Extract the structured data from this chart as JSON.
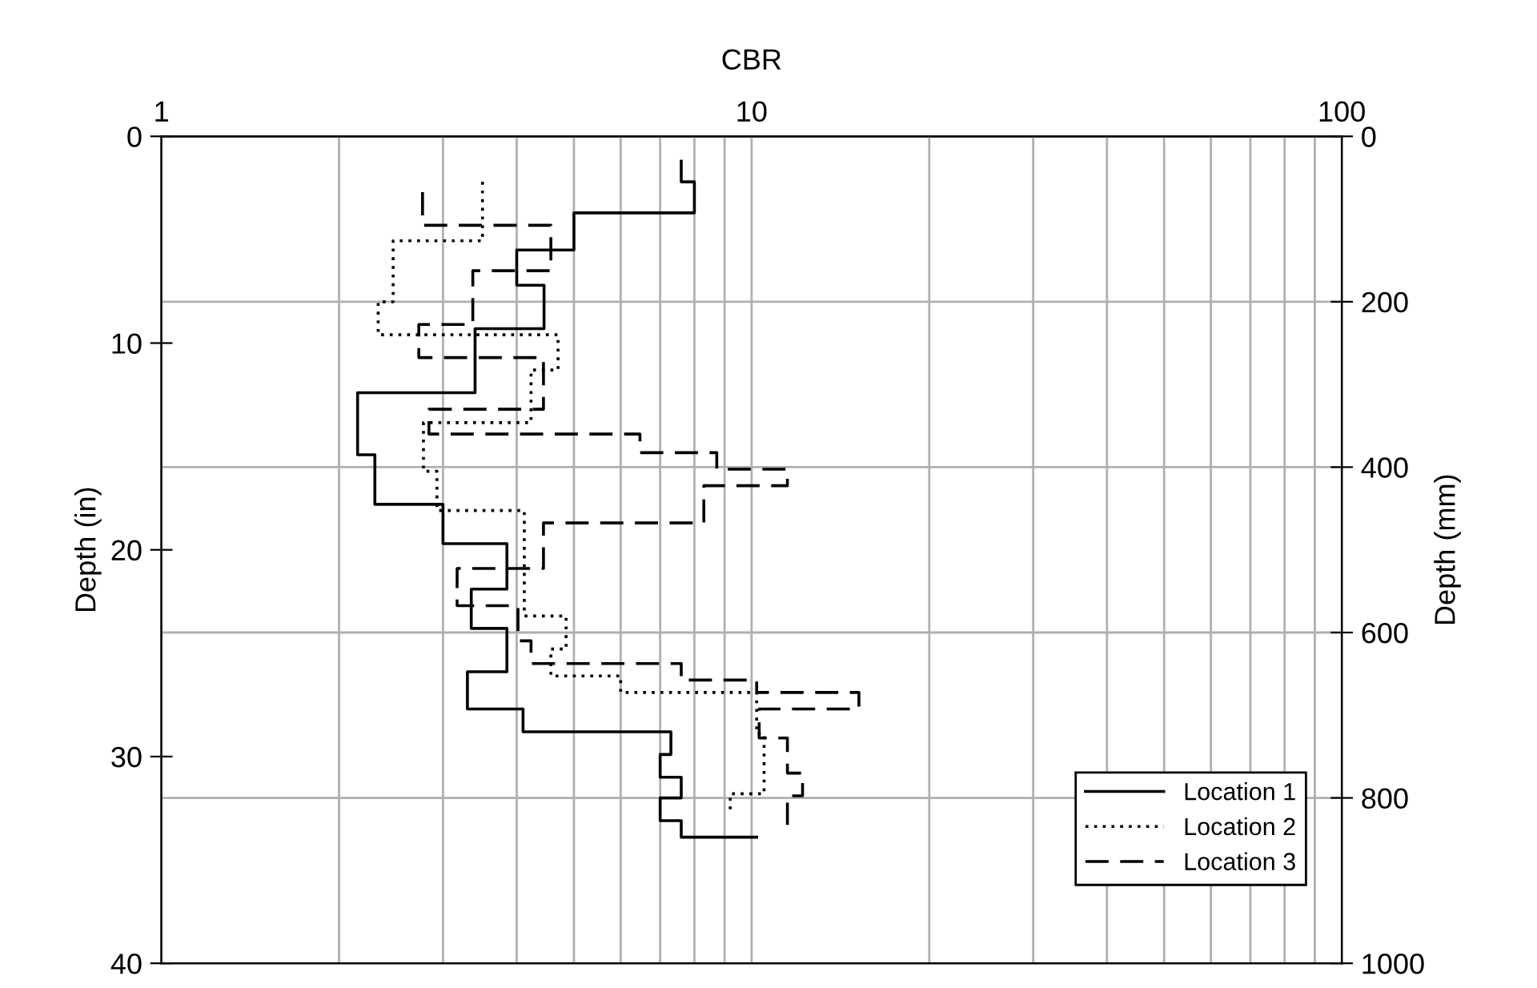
{
  "chart_data": {
    "type": "line",
    "xlabel": "CBR",
    "ylabel": "Depth (in)",
    "y2label": "Depth (mm)",
    "log": "x",
    "xlim": [
      1,
      100
    ],
    "xticks": [
      1,
      {
        "value": 2,
        "label": null
      },
      {
        "value": 3,
        "label": null
      },
      {
        "value": 4,
        "label": null
      },
      {
        "value": 5,
        "label": null
      },
      {
        "value": 6,
        "label": null
      },
      {
        "value": 7,
        "label": null
      },
      {
        "value": 8,
        "label": null
      },
      {
        "value": 9,
        "label": null
      },
      10,
      {
        "value": 20,
        "label": null
      },
      {
        "value": 30,
        "label": null
      },
      {
        "value": 40,
        "label": null
      },
      {
        "value": 50,
        "label": null
      },
      {
        "value": 60,
        "label": null
      },
      {
        "value": 70,
        "label": null
      },
      {
        "value": 80,
        "label": null
      },
      {
        "value": 90,
        "label": null
      },
      100
    ],
    "ylim": [
      40,
      0
    ],
    "yticks": [
      0,
      10,
      20,
      30,
      40
    ],
    "y2lim": [
      1000,
      0
    ],
    "y2ticks": [
      0,
      200,
      400,
      600,
      800,
      1000
    ],
    "grid": true,
    "legend": "bottom right",
    "marker": "none",
    "series": [
      {
        "name": "Location 1",
        "color": "#000000",
        "line_style": "solid",
        "x": [
          7.6,
          7.6,
          8.0,
          8.0,
          5.0,
          5.0,
          4.0,
          4.0,
          4.45,
          4.45,
          3.4,
          3.4,
          2.15,
          2.15,
          2.3,
          2.3,
          3.0,
          3.0,
          3.85,
          3.85,
          3.35,
          3.35,
          3.85,
          3.85,
          3.3,
          3.3,
          4.1,
          4.1,
          7.3,
          7.3,
          7.0,
          7.0,
          7.6,
          7.6,
          7.0,
          7.0,
          7.6,
          7.6,
          10.2
        ],
        "values": [
          1.2,
          2.2,
          2.2,
          3.7,
          3.7,
          5.5,
          5.5,
          7.2,
          7.2,
          9.3,
          9.3,
          12.4,
          12.4,
          15.4,
          15.4,
          17.8,
          17.8,
          19.7,
          19.7,
          21.9,
          21.9,
          23.8,
          23.8,
          25.9,
          25.9,
          27.7,
          27.7,
          28.8,
          28.8,
          29.9,
          29.9,
          31.0,
          31.0,
          32.0,
          32.0,
          33.1,
          33.1,
          33.9,
          33.9
        ]
      },
      {
        "name": "Location 2",
        "color": "#000000",
        "line_style": "dotted",
        "x": [
          3.5,
          3.5,
          2.47,
          2.47,
          2.33,
          2.33,
          4.7,
          4.7,
          4.23,
          4.23,
          2.78,
          2.78,
          2.93,
          2.93,
          4.12,
          4.12,
          4.85,
          4.85,
          4.57,
          4.57,
          6.0,
          6.0,
          10.2,
          10.2,
          10.5,
          10.5,
          9.2,
          9.2
        ],
        "values": [
          2.2,
          5.05,
          5.05,
          8.0,
          8.0,
          9.6,
          9.6,
          11.3,
          11.3,
          13.85,
          13.85,
          16.2,
          16.2,
          18.1,
          18.1,
          23.2,
          23.2,
          24.8,
          24.8,
          26.1,
          26.1,
          26.9,
          26.9,
          28.9,
          28.9,
          31.8,
          31.8,
          32.6
        ]
      },
      {
        "name": "Location 3",
        "color": "#000000",
        "line_style": "dashed",
        "x": [
          2.77,
          2.77,
          4.57,
          4.57,
          3.37,
          3.37,
          2.73,
          2.73,
          4.44,
          4.44,
          2.84,
          2.84,
          6.47,
          6.47,
          8.73,
          8.73,
          11.5,
          11.5,
          8.3,
          8.3,
          4.44,
          4.44,
          3.17,
          3.17,
          4.02,
          4.02,
          4.23,
          4.23,
          7.6,
          7.6,
          10.2,
          10.2,
          15.2,
          15.2,
          10.3,
          10.3,
          11.5,
          11.5,
          12.2,
          12.2,
          11.5,
          11.5
        ],
        "values": [
          2.7,
          4.3,
          4.3,
          6.5,
          6.5,
          9.1,
          9.1,
          10.7,
          10.7,
          13.2,
          13.2,
          14.4,
          14.4,
          15.3,
          15.3,
          16.1,
          16.1,
          16.9,
          16.9,
          18.7,
          18.7,
          20.9,
          20.9,
          22.7,
          22.7,
          24.4,
          24.4,
          25.5,
          25.5,
          26.3,
          26.3,
          26.9,
          26.9,
          27.7,
          27.7,
          29.1,
          29.1,
          30.8,
          30.8,
          31.9,
          31.9,
          33.3
        ]
      }
    ]
  }
}
